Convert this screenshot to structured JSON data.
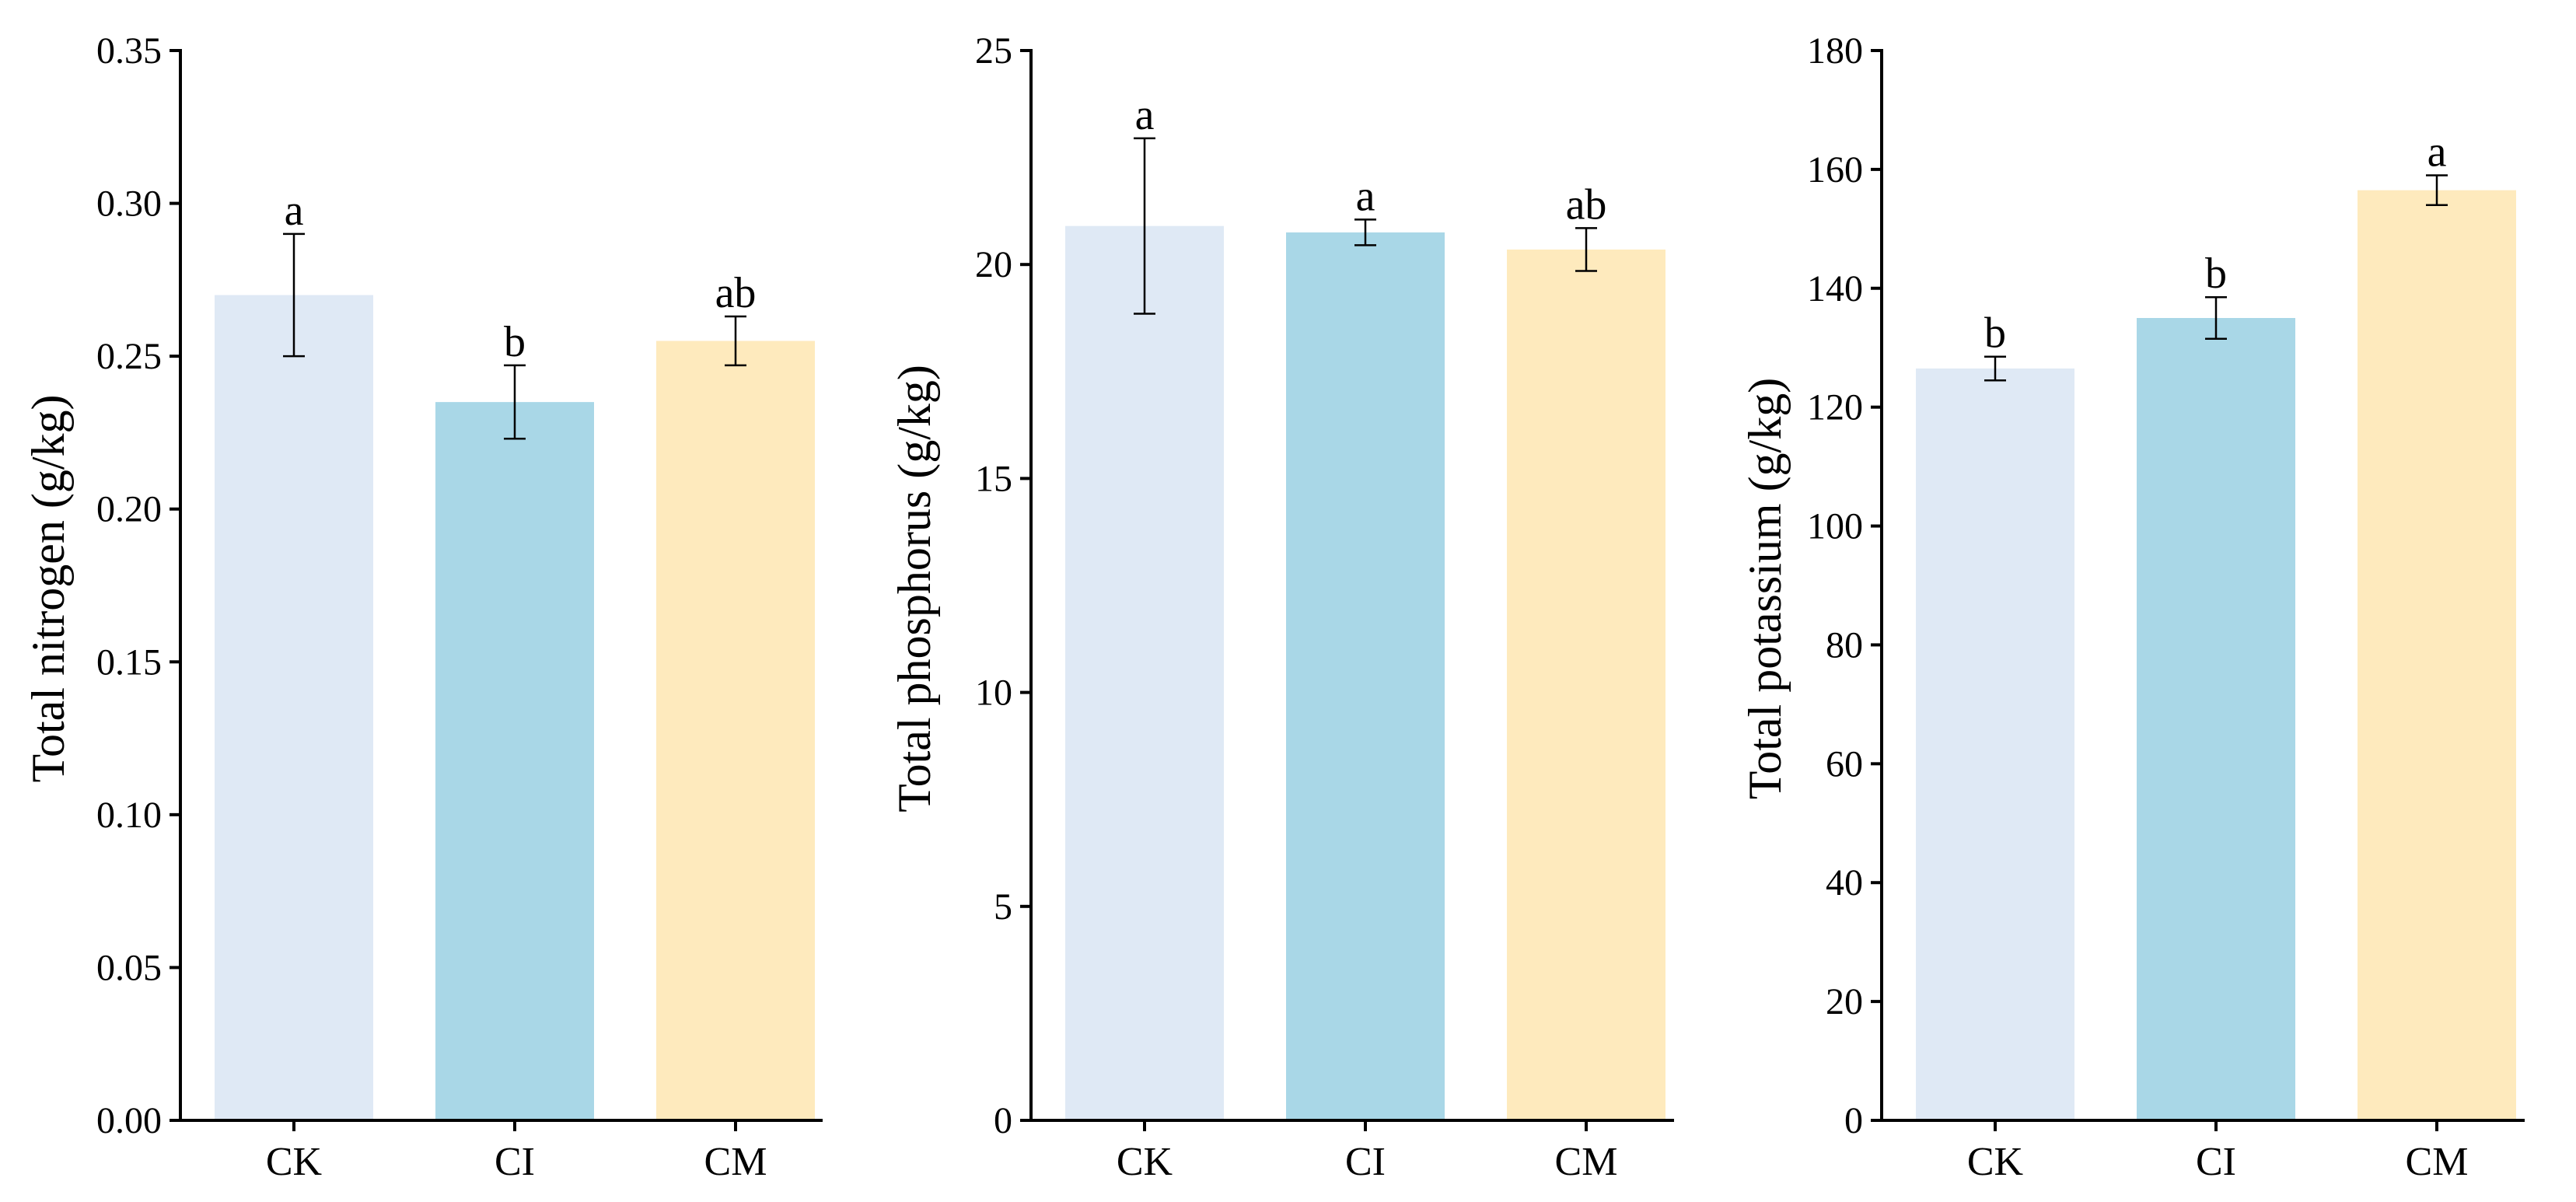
{
  "colors": {
    "CK": "#dfe9f5",
    "CI": "#a9d7e7",
    "CM": "#feeabd"
  },
  "chart_data": [
    {
      "type": "bar",
      "categories": [
        "CK",
        "CI",
        "CM"
      ],
      "values": [
        0.27,
        0.235,
        0.255
      ],
      "errors": [
        0.02,
        0.012,
        0.008
      ],
      "significance": [
        "a",
        "b",
        "ab"
      ],
      "ylabel": "Total nitrogen (g/kg)",
      "xlabel": "",
      "ylim": [
        0,
        0.35
      ],
      "yticks": [
        "0.00",
        "0.05",
        "0.10",
        "0.15",
        "0.20",
        "0.25",
        "0.30",
        "0.35"
      ]
    },
    {
      "type": "bar",
      "categories": [
        "CK",
        "CI",
        "CM"
      ],
      "values": [
        20.9,
        20.75,
        20.35
      ],
      "errors": [
        2.05,
        0.3,
        0.5
      ],
      "significance": [
        "a",
        "a",
        "ab"
      ],
      "ylabel": "Total phosphorus (g/kg)",
      "xlabel": "",
      "ylim": [
        0,
        25
      ],
      "yticks": [
        "0",
        "5",
        "10",
        "15",
        "20",
        "25"
      ]
    },
    {
      "type": "bar",
      "categories": [
        "CK",
        "CI",
        "CM"
      ],
      "values": [
        126.5,
        135.0,
        156.5
      ],
      "errors": [
        2.0,
        3.5,
        2.5
      ],
      "significance": [
        "b",
        "b",
        "a"
      ],
      "ylabel": "Total potassium (g/kg)",
      "xlabel": "",
      "ylim": [
        0,
        180
      ],
      "yticks": [
        "0",
        "20",
        "40",
        "60",
        "80",
        "100",
        "120",
        "140",
        "160",
        "180"
      ]
    }
  ]
}
